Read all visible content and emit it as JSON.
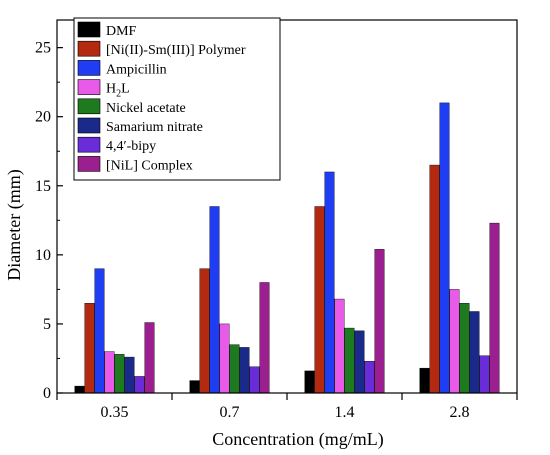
{
  "chart_data": {
    "type": "bar",
    "xlabel": "Concentration (mg/mL)",
    "ylabel": "Diameter (mm)",
    "categories": [
      "0.35",
      "0.7",
      "1.4",
      "2.8"
    ],
    "ylim": [
      0,
      27
    ],
    "yticks": [
      0,
      5,
      10,
      15,
      20,
      25
    ],
    "legend_position": "top-left",
    "series": [
      {
        "name": "DMF",
        "color": "#000000",
        "values": [
          0.5,
          0.9,
          1.6,
          1.8
        ]
      },
      {
        "name": "[Ni(II)-Sm(III)] Polymer",
        "color": "#b32a10",
        "values": [
          6.5,
          9.0,
          13.5,
          16.5
        ]
      },
      {
        "name": "Ampicillin",
        "color": "#1f3df2",
        "values": [
          9.0,
          13.5,
          16.0,
          21.0
        ]
      },
      {
        "name": "H2L",
        "color": "#e85ae8",
        "values": [
          3.0,
          5.0,
          6.8,
          7.5
        ]
      },
      {
        "name": "Nickel acetate",
        "color": "#1e7a1e",
        "values": [
          2.8,
          3.5,
          4.7,
          6.5
        ]
      },
      {
        "name": "Samarium nitrate",
        "color": "#1a2a8a",
        "values": [
          2.6,
          3.3,
          4.5,
          5.9
        ]
      },
      {
        "name": "4,4′-bipy",
        "color": "#6a2bd9",
        "values": [
          1.2,
          1.9,
          2.3,
          2.7
        ]
      },
      {
        "name": "[NiL] Complex",
        "color": "#9b1f8f",
        "values": [
          5.1,
          8.0,
          10.4,
          12.3
        ]
      }
    ],
    "legend_labels": {
      "h2l": {
        "main": "H",
        "sub": "2",
        "tail": "L"
      }
    }
  }
}
